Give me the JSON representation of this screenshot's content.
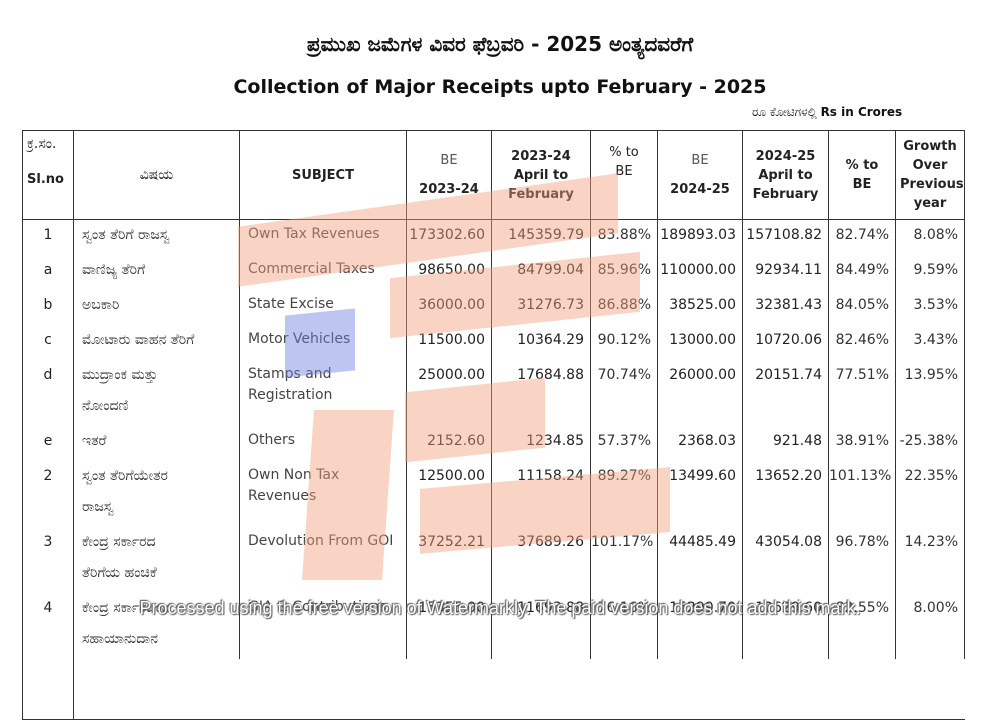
{
  "title_kn": "ಪ್ರಮುಖ ಜಮೆಗಳ ವಿವರ ಫೆಬ್ರವರಿ - 2025 ಅಂತ್ಯದವರೆಗೆ",
  "title_en": "Collection of Major Receipts upto  February - 2025",
  "units_kn": "ರೂ ಕೋಟಿಗಳಲ್ಲಿ",
  "units_en": "Rs in Crores",
  "headers": {
    "slno_kn": "ಕ್ರ.ಸಂ.",
    "slno_en": "Sl.no",
    "subject_kn": "ವಿಷಯ",
    "subject_en": "SUBJECT",
    "be_2324_a": "BE",
    "be_2324_b": "2023-24",
    "apr_2324": "2023-24 April to February",
    "pct_be_1": "% to BE",
    "be_2425_a": "BE",
    "be_2425_b": "2024-25",
    "apr_2425": "2024-25 April to February",
    "pct_be_2": "% to BE",
    "growth": "Growth Over Previous year"
  },
  "rows": [
    {
      "sl": "1",
      "kn": "ಸ್ವಂತ ತೆರಿಗೆ ರಾಜಸ್ವ",
      "kn2": "",
      "subject": "Own Tax Revenues",
      "be2324": "173302.60",
      "apr2324": "145359.79",
      "pct1": "83.88%",
      "be2425": "189893.03",
      "apr2425": "157108.82",
      "pct2": "82.74%",
      "growth": "8.08%"
    },
    {
      "sl": "a",
      "kn": "ವಾಣಿಜ್ಯ ತೆರಿಗೆ",
      "kn2": "",
      "subject": "Commercial Taxes",
      "be2324": "98650.00",
      "apr2324": "84799.04",
      "pct1": "85.96%",
      "be2425": "110000.00",
      "apr2425": "92934.11",
      "pct2": "84.49%",
      "growth": "9.59%"
    },
    {
      "sl": "b",
      "kn": "ಅಬಕಾರಿ",
      "kn2": "",
      "subject": "State Excise",
      "be2324": "36000.00",
      "apr2324": "31276.73",
      "pct1": "86.88%",
      "be2425": "38525.00",
      "apr2425": "32381.43",
      "pct2": "84.05%",
      "growth": "3.53%"
    },
    {
      "sl": "c",
      "kn": "ಮೋಟಾರು ವಾಹನ ತೆರಿಗೆ",
      "kn2": "",
      "subject": "Motor Vehicles",
      "be2324": "11500.00",
      "apr2324": "10364.29",
      "pct1": "90.12%",
      "be2425": "13000.00",
      "apr2425": "10720.06",
      "pct2": "82.46%",
      "growth": "3.43%"
    },
    {
      "sl": "d",
      "kn": "ಮುದ್ರಾಂಕ ಮತ್ತು",
      "kn2": "ನೋಂದಣಿ",
      "subject": "Stamps and Registration",
      "be2324": "25000.00",
      "apr2324": "17684.88",
      "pct1": "70.74%",
      "be2425": "26000.00",
      "apr2425": "20151.74",
      "pct2": "77.51%",
      "growth": "13.95%"
    },
    {
      "sl": "e",
      "kn": "ಇತರೆ",
      "kn2": "",
      "subject": "Others",
      "be2324": "2152.60",
      "apr2324": "1234.85",
      "pct1": "57.37%",
      "be2425": "2368.03",
      "apr2425": "921.48",
      "pct2": "38.91%",
      "growth": "-25.38%"
    },
    {
      "sl": "2",
      "kn": "ಸ್ವಂತ ತೆರಿಗೆಯೇತರ",
      "kn2": "ರಾಜಸ್ವ",
      "subject": "Own Non Tax Revenues",
      "be2324": "12500.00",
      "apr2324": "11158.24",
      "pct1": "89.27%",
      "be2425": "13499.60",
      "apr2425": "13652.20",
      "pct2": "101.13%",
      "growth": "22.35%"
    },
    {
      "sl": "3",
      "kn": "ಕೇಂದ್ರ ಸರ್ಕಾರದ",
      "kn2": "ತೆರಿಗೆಯ ಹಂಚಿಕೆ",
      "subject": "Devolution From GOI",
      "be2324": "37252.21",
      "apr2324": "37689.26",
      "pct1": "101.17%",
      "be2425": "44485.49",
      "apr2425": "43054.08",
      "pct2": "96.78%",
      "growth": "14.23%"
    },
    {
      "sl": "4",
      "kn": "ಕೇಂದ್ರ ಸರ್ಕಾರದಿಂದ",
      "kn2": "ಸಹಾಯಾನುದಾನ",
      "subject": "GIA & Contributions",
      "be2324": "15355.00",
      "apr2324": "11693.88",
      "pct1": "76.16%",
      "be2425": "15299.70",
      "apr2425": "12629.60",
      "pct2": "82.55%",
      "growth": "8.00%"
    }
  ],
  "watermark": "Processed using the free version of Watermarkly. The paid version does not add this mark.",
  "colors": {
    "wm_orange": "#f2a07f",
    "wm_blue": "#6c7fe0"
  }
}
